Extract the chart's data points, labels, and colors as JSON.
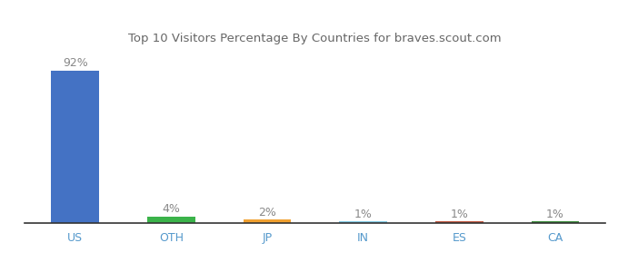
{
  "categories": [
    "US",
    "OTH",
    "JP",
    "IN",
    "ES",
    "CA"
  ],
  "values": [
    92,
    4,
    2,
    1,
    1,
    1
  ],
  "labels": [
    "92%",
    "4%",
    "2%",
    "1%",
    "1%",
    "1%"
  ],
  "bar_colors": [
    "#4472c4",
    "#3bb34a",
    "#f0a030",
    "#7ec8e3",
    "#c0543c",
    "#3a8c3a"
  ],
  "title": "Top 10 Visitors Percentage By Countries for braves.scout.com",
  "title_fontsize": 9.5,
  "label_fontsize": 9,
  "tick_fontsize": 9,
  "ylim": [
    0,
    105
  ],
  "background_color": "#ffffff",
  "label_color": "#888888",
  "tick_color": "#5599cc"
}
